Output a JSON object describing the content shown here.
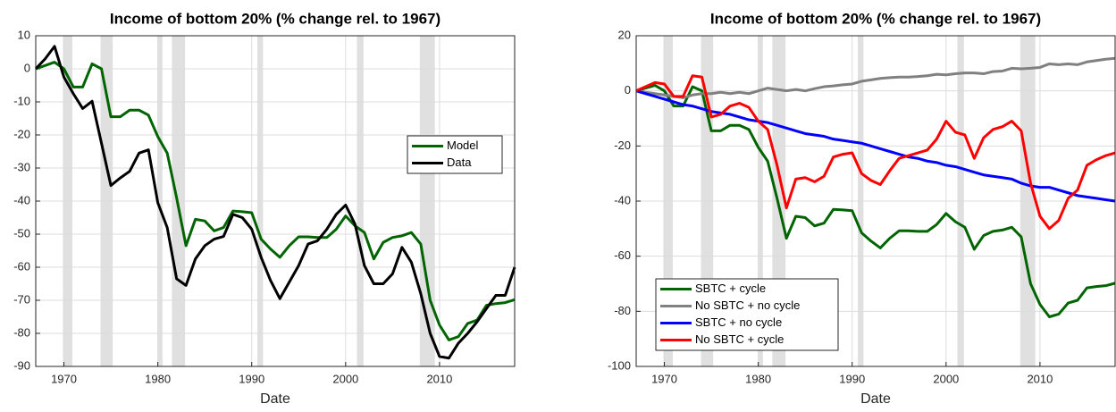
{
  "chart_data": [
    {
      "type": "line",
      "title": "Income of bottom 20% (% change rel. to 1967)",
      "x_label": "Date",
      "x": [
        1967,
        1968,
        1969,
        1970,
        1971,
        1972,
        1973,
        1974,
        1975,
        1976,
        1977,
        1978,
        1979,
        1980,
        1981,
        1982,
        1983,
        1984,
        1985,
        1986,
        1987,
        1988,
        1989,
        1990,
        1991,
        1992,
        1993,
        1994,
        1995,
        1996,
        1997,
        1998,
        1999,
        2000,
        2001,
        2002,
        2003,
        2004,
        2005,
        2006,
        2007,
        2008,
        2009,
        2010,
        2011,
        2012,
        2013,
        2014,
        2015,
        2016,
        2017,
        2018
      ],
      "series": [
        {
          "name": "Model",
          "color": "#006400",
          "values": [
            0,
            1,
            2,
            0,
            -5.5,
            -5.5,
            1.5,
            0,
            -14.5,
            -14.5,
            -12.5,
            -12.5,
            -14,
            -20.5,
            -25.5,
            -39,
            -53.5,
            -45.5,
            -46,
            -49,
            -48,
            -43,
            -43.2,
            -43.5,
            -51.5,
            -54.5,
            -57,
            -53.5,
            -50.8,
            -50.8,
            -51,
            -51,
            -48.5,
            -44.5,
            -47.5,
            -49.5,
            -57.5,
            -52.5,
            -51,
            -50.5,
            -49.5,
            -53,
            -70,
            -77.5,
            -82,
            -81,
            -77,
            -76,
            -71.5,
            -71,
            -70.7,
            -69.8
          ]
        },
        {
          "name": "Data",
          "color": "#000000",
          "values": [
            0,
            3,
            6.8,
            -2.5,
            -7.5,
            -12,
            -9.8,
            -22.5,
            -35.3,
            -33,
            -31,
            -25.5,
            -24.5,
            -40.5,
            -48,
            -63.5,
            -65.5,
            -57.5,
            -53.5,
            -51.5,
            -50.7,
            -44,
            -45,
            -48.5,
            -57,
            -64,
            -69.5,
            -64.5,
            -59.5,
            -53,
            -52,
            -48.5,
            -44,
            -41.2,
            -47,
            -59.5,
            -65,
            -65,
            -62,
            -54,
            -58.5,
            -68,
            -80,
            -87,
            -87.5,
            -83,
            -80,
            -76.5,
            -72.5,
            -68.5,
            -68.5,
            -60
          ]
        }
      ],
      "shaded_periods": [
        [
          1969.9,
          1970.9
        ],
        [
          1973.9,
          1975.2
        ],
        [
          1980,
          1980.5
        ],
        [
          1981.5,
          1982.9
        ],
        [
          1990.6,
          1991.2
        ],
        [
          2001.2,
          2001.9
        ],
        [
          2007.9,
          2009.5
        ]
      ],
      "shade_color": "#e0e0e0",
      "xlim": [
        1967,
        2018
      ],
      "xticks": [
        1970,
        1980,
        1990,
        2000,
        2010
      ],
      "ylim": [
        -90,
        10
      ],
      "yticks": [
        -90,
        -80,
        -70,
        -60,
        -50,
        -40,
        -30,
        -20,
        -10,
        0,
        10
      ],
      "grid": true,
      "legend_position": "east"
    },
    {
      "type": "line",
      "title": "Income of bottom 20% (% change rel. to 1967)",
      "x_label": "Date",
      "x": [
        1967,
        1968,
        1969,
        1970,
        1971,
        1972,
        1973,
        1974,
        1975,
        1976,
        1977,
        1978,
        1979,
        1980,
        1981,
        1982,
        1983,
        1984,
        1985,
        1986,
        1987,
        1988,
        1989,
        1990,
        1991,
        1992,
        1993,
        1994,
        1995,
        1996,
        1997,
        1998,
        1999,
        2000,
        2001,
        2002,
        2003,
        2004,
        2005,
        2006,
        2007,
        2008,
        2009,
        2010,
        2011,
        2012,
        2013,
        2014,
        2015,
        2016,
        2017,
        2018
      ],
      "series": [
        {
          "name": "SBTC + cycle",
          "color": "#006400",
          "values": [
            0,
            1,
            2,
            0,
            -5.5,
            -5.5,
            1.5,
            0,
            -14.5,
            -14.5,
            -12.5,
            -12.5,
            -14,
            -20.5,
            -25.5,
            -39,
            -53.5,
            -45.5,
            -46,
            -49,
            -48,
            -43,
            -43.2,
            -43.5,
            -51.5,
            -54.5,
            -57,
            -53.5,
            -50.8,
            -50.8,
            -51,
            -51,
            -48.5,
            -44.5,
            -47.5,
            -49.5,
            -57.5,
            -52.5,
            -51,
            -50.5,
            -49.5,
            -53,
            -70,
            -77.5,
            -82,
            -81,
            -77,
            -76,
            -71.5,
            -71,
            -70.7,
            -69.8
          ]
        },
        {
          "name": "No SBTC + no cycle",
          "color": "#808080",
          "values": [
            0,
            -0.5,
            -1,
            -1.5,
            -2,
            -2.5,
            -1.5,
            -1,
            -1,
            -0.5,
            -1,
            -0.5,
            -1,
            0,
            1,
            0.5,
            0,
            0.5,
            0,
            0.8,
            1.5,
            1.8,
            2.2,
            2.5,
            3.5,
            4,
            4.5,
            4.8,
            5,
            5,
            5.2,
            5.5,
            6,
            5.8,
            6.2,
            6.5,
            6.5,
            6.2,
            7,
            7.2,
            8.2,
            8,
            8.2,
            8.5,
            9.8,
            9.5,
            9.8,
            9.5,
            10.5,
            11,
            11.5,
            11.8
          ]
        },
        {
          "name": "SBTC + no cycle",
          "color": "#0000ff",
          "values": [
            0,
            -1,
            -2,
            -3,
            -4,
            -5,
            -5.5,
            -6.5,
            -7.5,
            -8,
            -8.5,
            -9.5,
            -10.5,
            -11,
            -11.5,
            -12.5,
            -13.5,
            -14.5,
            -15.5,
            -16,
            -16.5,
            -17.5,
            -18,
            -18.5,
            -19,
            -20,
            -21,
            -22,
            -23,
            -24,
            -24.5,
            -25.5,
            -26,
            -27,
            -27.5,
            -28.5,
            -29.5,
            -30.5,
            -31,
            -31.5,
            -32,
            -33.5,
            -34.5,
            -35,
            -35,
            -36,
            -37,
            -38,
            -38.5,
            -39,
            -39.5,
            -40
          ]
        },
        {
          "name": "No SBTC + cycle",
          "color": "#ff0000",
          "values": [
            0,
            1.5,
            3,
            2.5,
            -2,
            -2,
            5.5,
            5,
            -9.5,
            -8.5,
            -5.5,
            -4.5,
            -6,
            -11,
            -14,
            -27,
            -42.5,
            -32,
            -31.5,
            -33,
            -31,
            -24,
            -23,
            -22.5,
            -30,
            -32.5,
            -34,
            -29,
            -24.5,
            -23.5,
            -22.5,
            -21.5,
            -17.5,
            -11,
            -15,
            -16,
            -24.5,
            -17,
            -14,
            -13,
            -11,
            -14.5,
            -33.5,
            -45.5,
            -50,
            -47,
            -39,
            -36,
            -27,
            -25,
            -23.5,
            -22.5
          ]
        }
      ],
      "shaded_periods": [
        [
          1969.9,
          1970.9
        ],
        [
          1973.9,
          1975.2
        ],
        [
          1980,
          1980.5
        ],
        [
          1981.5,
          1982.9
        ],
        [
          1990.6,
          1991.2
        ],
        [
          2001.2,
          2001.9
        ],
        [
          2007.9,
          2009.5
        ]
      ],
      "shade_color": "#e0e0e0",
      "xlim": [
        1967,
        2018
      ],
      "xticks": [
        1970,
        1980,
        1990,
        2000,
        2010
      ],
      "ylim": [
        -100,
        20
      ],
      "yticks": [
        -100,
        -80,
        -60,
        -40,
        -20,
        0,
        20
      ],
      "grid": true,
      "legend_position": "southwest"
    }
  ]
}
